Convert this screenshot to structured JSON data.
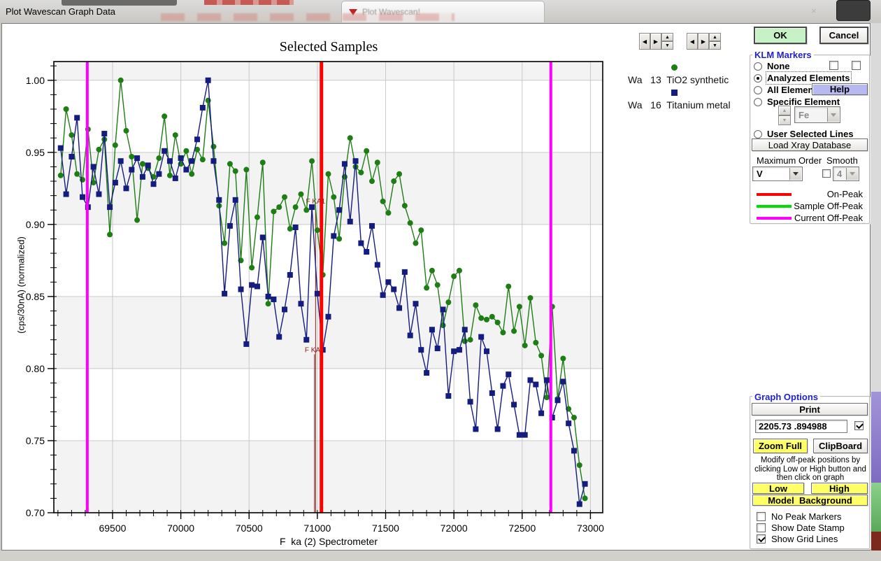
{
  "window": {
    "title": "Plot Wavescan Graph Data",
    "background_tab_title": "Plot Wavescan!"
  },
  "buttons": {
    "ok": "OK",
    "cancel": "Cancel"
  },
  "sample_legend": [
    {
      "prefix": "Wa",
      "number": "13",
      "name": "TiO2 synthetic",
      "marker": "circle",
      "color": "#1e7d14"
    },
    {
      "prefix": "Wa",
      "number": "16",
      "name": "Titanium metal",
      "marker": "square",
      "color": "#141c7d"
    }
  ],
  "klm_markers": {
    "title": "KLM Markers",
    "options": {
      "none": "None",
      "analyzed": "Analyzed Elements",
      "all": "All Elements",
      "specific": "Specific Element"
    },
    "selected_option": "Analyzed Elements",
    "help_label": "Help",
    "element_value": "Fe",
    "user_selected_lines_label": "User Selected Lines",
    "load_xray_label": "Load Xray Database",
    "maximum_order_label": "Maximum Order",
    "maximum_order_value": "V",
    "smooth_label": "Smooth",
    "smooth_value": "4",
    "smooth_checked": false,
    "legend": [
      {
        "label": "On-Peak",
        "color": "#ff0000"
      },
      {
        "label": "Sample Off-Peak",
        "color": "#00e000"
      },
      {
        "label": "Current Off-Peak",
        "color": "#ff00ff"
      }
    ]
  },
  "graph_options": {
    "title": "Graph Options",
    "print_label": "Print",
    "cursor_readout": "2205.73 .894988",
    "readout_checked": true,
    "zoom_full_label": "Zoom Full",
    "clipboard_label": "ClipBoard",
    "instruction": "Modify off-peak positions by clicking Low or High button and then click on graph",
    "low_label": "Low",
    "high_label": "High",
    "model_background_label": "Model  Background",
    "checkboxes": [
      {
        "label": "No Peak Markers",
        "checked": false
      },
      {
        "label": "Show Date Stamp",
        "checked": false
      },
      {
        "label": "Show Grid Lines",
        "checked": true
      }
    ]
  },
  "chart_data": {
    "type": "line",
    "title": "Selected Samples",
    "xlabel": "F  ka (2) Spectrometer",
    "ylabel": "(cps/30nA) (normalized)",
    "xlim": [
      69070,
      73090
    ],
    "ylim": [
      0.7,
      1.013
    ],
    "x_ticks": [
      69500,
      70000,
      70500,
      71000,
      71500,
      72000,
      72500,
      73000
    ],
    "y_ticks": [
      0.7,
      0.75,
      0.8,
      0.85,
      0.9,
      0.95,
      1.0
    ],
    "x_minor_step": 100,
    "y_minor_step": 0.01,
    "grid": true,
    "band_color": "#f3f3f3",
    "gray_bands": [
      [
        1.013,
        1.0
      ],
      [
        0.95,
        0.9
      ],
      [
        0.85,
        0.8
      ],
      [
        0.75,
        0.7
      ]
    ],
    "x_start": 69120,
    "x_step": 40,
    "series": [
      {
        "name": "Wa 13 TiO2 synthetic",
        "marker": "circle",
        "color": "#1e7d14",
        "values": [
          0.934,
          0.98,
          0.962,
          0.935,
          0.931,
          0.966,
          0.929,
          0.952,
          0.959,
          0.893,
          0.955,
          1.0,
          0.965,
          0.947,
          0.903,
          0.942,
          0.939,
          0.933,
          0.946,
          0.975,
          0.934,
          0.962,
          0.942,
          0.951,
          0.935,
          0.952,
          0.945,
          0.986,
          0.954,
          0.913,
          0.887,
          0.942,
          0.937,
          0.875,
          0.938,
          0.87,
          0.905,
          0.943,
          0.845,
          0.909,
          0.912,
          0.919,
          0.897,
          0.912,
          0.921,
          0.91,
          0.944,
          0.896,
          0.865,
          0.935,
          0.919,
          0.89,
          0.933,
          0.96,
          0.94,
          0.936,
          0.951,
          0.93,
          0.943,
          0.916,
          0.908,
          0.93,
          0.935,
          0.913,
          0.901,
          0.887,
          0.896,
          0.856,
          0.868,
          0.858,
          0.83,
          0.846,
          0.864,
          0.868,
          0.819,
          0.82,
          0.844,
          0.835,
          0.834,
          0.836,
          0.832,
          0.825,
          0.857,
          0.826,
          0.843,
          0.816,
          0.849,
          0.818,
          0.809,
          0.78,
          0.843,
          0.779,
          0.807,
          0.772,
          0.766,
          0.733,
          0.71
        ]
      },
      {
        "name": "Wa 16 Titanium metal",
        "marker": "square",
        "color": "#141c7d",
        "values": [
          0.953,
          0.921,
          0.947,
          0.974,
          0.919,
          0.912,
          0.94,
          0.921,
          0.963,
          0.912,
          0.929,
          0.944,
          0.925,
          0.938,
          0.946,
          0.933,
          0.941,
          0.928,
          0.935,
          0.951,
          0.944,
          0.932,
          0.946,
          0.938,
          0.944,
          0.959,
          0.981,
          1.0,
          0.944,
          0.917,
          0.852,
          0.899,
          0.917,
          0.855,
          0.817,
          0.858,
          0.857,
          0.891,
          0.85,
          0.848,
          0.822,
          0.841,
          0.865,
          0.898,
          0.845,
          0.82,
          0.912,
          0.852,
          0.813,
          0.836,
          0.892,
          0.91,
          0.942,
          0.902,
          0.944,
          0.887,
          0.881,
          0.899,
          0.872,
          0.851,
          0.86,
          0.855,
          0.842,
          0.867,
          0.823,
          0.845,
          0.813,
          0.797,
          0.827,
          0.814,
          0.841,
          0.781,
          0.812,
          0.813,
          0.827,
          0.777,
          0.758,
          0.822,
          0.812,
          0.783,
          0.758,
          0.788,
          0.796,
          0.775,
          0.754,
          0.754,
          0.792,
          0.789,
          0.769,
          0.792,
          0.766,
          0.778,
          0.791,
          0.762,
          0.743,
          0.706,
          0.72
        ]
      }
    ],
    "markers": {
      "on_peak": {
        "x": 71030,
        "color": "#ff0000"
      },
      "current_off_peak": {
        "color": "#ff00ff",
        "positions": [
          69315,
          72710
        ]
      },
      "klm_lines": {
        "color": "#8b1a1a",
        "lines": [
          {
            "label": "F KA1",
            "x": 70987,
            "top": 0.913
          },
          {
            "label": "F KA2",
            "x": 70979,
            "top": 0.81
          }
        ]
      }
    }
  }
}
